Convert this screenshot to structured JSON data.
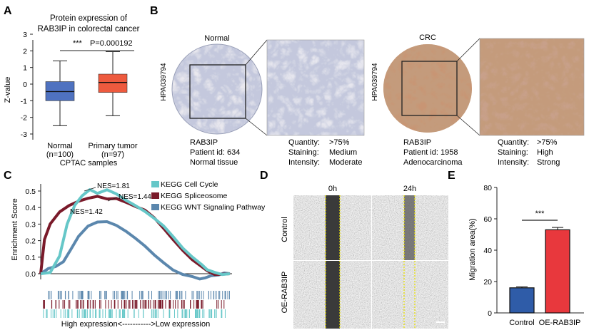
{
  "panels": {
    "A": "A",
    "B": "B",
    "C": "C",
    "D": "D",
    "E": "E"
  },
  "colors": {
    "normal": "#4f72c0",
    "tumor": "#ee5a3e",
    "cell_cycle": "#66c7c8",
    "spliceosome": "#7a1a2a",
    "wnt": "#5b87ad",
    "control_bar": "#2f5ca8",
    "oe_bar": "#e8383d",
    "wound_line": "#e8e000"
  },
  "panelA": {
    "title_line1": "Protein expression of",
    "title_line2": "RAB3IP in colorectal cancer",
    "ylabel": "Z-value",
    "yticks": [
      "3",
      "2",
      "1",
      "0",
      "-1",
      "-2",
      "-3"
    ],
    "sig_stars": "***",
    "p_value": "P=0.000192",
    "group1_name": "Normal",
    "group1_n": "(n=100)",
    "group2_name": "Primary tumor",
    "group2_n": "(n=97)",
    "xlabel": "CPTAC samples"
  },
  "chart_data": [
    {
      "type": "box",
      "title": "Protein expression of RAB3IP in colorectal cancer",
      "ylabel": "Z-value",
      "xlabel": "CPTAC samples",
      "ylim": [
        -3,
        3
      ],
      "categories": [
        "Normal",
        "Primary tumor"
      ],
      "boxes": [
        {
          "name": "Normal",
          "whisker_low": -2.5,
          "q1": -1.0,
          "median": -0.45,
          "q3": 0.15,
          "whisker_high": 1.4
        },
        {
          "name": "Primary tumor",
          "whisker_low": -1.9,
          "q1": -0.5,
          "median": 0.1,
          "q3": 0.6,
          "whisker_high": 1.95
        }
      ]
    },
    {
      "type": "line",
      "ylabel": "Enrichment Score",
      "xlabel": "High expression<----------->Low expression",
      "ylim": [
        -0.05,
        0.55
      ],
      "yticks": [
        0.0,
        0.1,
        0.2,
        0.3,
        0.4,
        0.5
      ],
      "series": [
        {
          "name": "KEGG Cell Cycle",
          "nes": "NES=1.81",
          "x": [
            0,
            0.05,
            0.1,
            0.14,
            0.18,
            0.22,
            0.26,
            0.3,
            0.35,
            0.4,
            0.45,
            0.5,
            0.55,
            0.6,
            0.65,
            0.7,
            0.75,
            0.8,
            0.85,
            0.88,
            0.92,
            0.96,
            1.0
          ],
          "y": [
            0,
            0.0,
            0.1,
            0.3,
            0.42,
            0.48,
            0.51,
            0.48,
            0.5,
            0.48,
            0.45,
            0.42,
            0.38,
            0.33,
            0.28,
            0.22,
            0.16,
            0.11,
            0.06,
            0.02,
            0.0,
            -0.01,
            0
          ]
        },
        {
          "name": "KEGG Spliceosome",
          "nes": "NES=1.44",
          "x": [
            0,
            0.02,
            0.05,
            0.1,
            0.15,
            0.2,
            0.25,
            0.3,
            0.35,
            0.4,
            0.45,
            0.5,
            0.55,
            0.6,
            0.65,
            0.7,
            0.75,
            0.8,
            0.85,
            0.88,
            0.92,
            0.96,
            1.0
          ],
          "y": [
            0,
            0.2,
            0.3,
            0.38,
            0.42,
            0.44,
            0.45,
            0.46,
            0.45,
            0.46,
            0.44,
            0.41,
            0.38,
            0.33,
            0.27,
            0.21,
            0.15,
            0.09,
            0.04,
            0.01,
            -0.01,
            0.0,
            0
          ]
        },
        {
          "name": "KEGG WNT Signaling Pathway",
          "nes": "NES=1.42",
          "x": [
            0,
            0.04,
            0.08,
            0.12,
            0.16,
            0.2,
            0.25,
            0.3,
            0.35,
            0.4,
            0.45,
            0.5,
            0.55,
            0.6,
            0.65,
            0.7,
            0.75,
            0.8,
            0.84,
            0.87,
            0.9,
            0.94,
            0.97,
            1.0
          ],
          "y": [
            0,
            0.03,
            0.05,
            0.08,
            0.15,
            0.22,
            0.28,
            0.31,
            0.32,
            0.3,
            0.26,
            0.21,
            0.16,
            0.11,
            0.07,
            0.03,
            0.0,
            -0.02,
            -0.04,
            -0.03,
            -0.01,
            0.0,
            0.01,
            0
          ]
        }
      ]
    },
    {
      "type": "bar",
      "ylabel": "Migration area(%)",
      "categories": [
        "Control",
        "OE-RAB3IP"
      ],
      "values": [
        16,
        53
      ],
      "errors": [
        0.6,
        1.5
      ],
      "ylim": [
        0,
        80
      ],
      "yticks": [
        0,
        20,
        40,
        60,
        80
      ],
      "significance": "***"
    }
  ],
  "panelB": {
    "normal_title": "Normal",
    "crc_title": "CRC",
    "antibody": "HPA039794",
    "normal_info": {
      "left": [
        "RAB3IP",
        "Patient id:  634",
        "Normal tissue"
      ],
      "right_keys": [
        "Quantity:",
        "Staining:",
        "Intensity:"
      ],
      "right_vals": [
        ">75%",
        "Medium",
        "Moderate"
      ]
    },
    "crc_info": {
      "left": [
        "RAB3IP",
        "Patient id:  1958",
        "Adenocarcinoma"
      ],
      "right_keys": [
        "Quantity:",
        "Staining:",
        "Intensity:"
      ],
      "right_vals": [
        ">75%",
        "High",
        "Strong"
      ]
    }
  },
  "panelC": {
    "ylabel": "Enrichment Score",
    "yticks": [
      "0.5",
      "0.4",
      "0.3",
      "0.2",
      "0.1",
      "0.0"
    ],
    "legend": [
      "KEGG Cell Cycle",
      "KEGG Spliceosome",
      "KEGG WNT Signaling Pathway"
    ],
    "nes_labels": [
      "NES=1.81",
      "NES=1.44",
      "NES=1.42"
    ],
    "xlabel": "High expression<----------->Low expression"
  },
  "panelD": {
    "time0": "0h",
    "time24": "24h",
    "row1": "Control",
    "row2": "OE-RAB3IP"
  },
  "panelE": {
    "ylabel": "Migration area(%)",
    "yticks": [
      "80",
      "60",
      "40",
      "20",
      "0"
    ],
    "categories": [
      "Control",
      "OE-RAB3IP"
    ],
    "sig": "***"
  }
}
